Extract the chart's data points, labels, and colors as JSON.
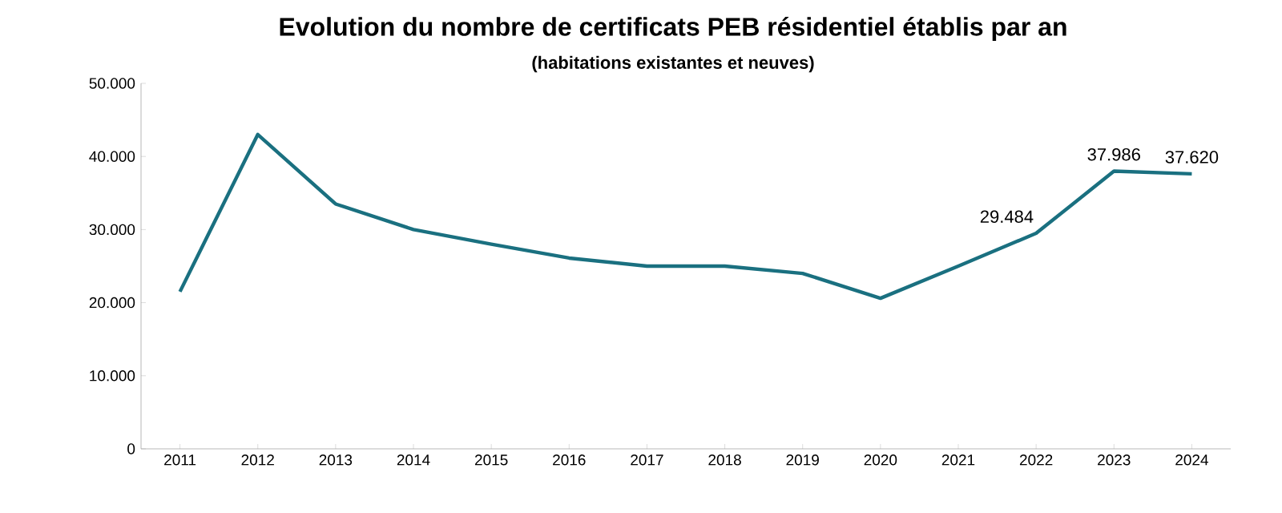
{
  "chart_data": {
    "type": "line",
    "title": "Evolution du nombre de certificats PEB résidentiel établis par an",
    "subtitle": "(habitations existantes et neuves)",
    "categories": [
      "2011",
      "2012",
      "2013",
      "2014",
      "2015",
      "2016",
      "2017",
      "2018",
      "2019",
      "2020",
      "2021",
      "2022",
      "2023",
      "2024"
    ],
    "series": [
      {
        "color": "#1a7080",
        "values": [
          21500,
          43000,
          33500,
          30000,
          28000,
          26100,
          25000,
          25000,
          24000,
          20600,
          25000,
          29484,
          37986,
          37620
        ],
        "value_labels": [
          null,
          null,
          null,
          null,
          null,
          null,
          null,
          null,
          null,
          null,
          null,
          "29.484",
          "37.986",
          "37.620"
        ]
      }
    ],
    "ylim": [
      0,
      50000
    ],
    "yticks": [
      {
        "value": 0,
        "label": "0"
      },
      {
        "value": 10000,
        "label": "10.000"
      },
      {
        "value": 20000,
        "label": "20.000"
      },
      {
        "value": 30000,
        "label": "30.000"
      },
      {
        "value": 40000,
        "label": "40.000"
      },
      {
        "value": 50000,
        "label": "50.000"
      }
    ],
    "grid": false
  }
}
